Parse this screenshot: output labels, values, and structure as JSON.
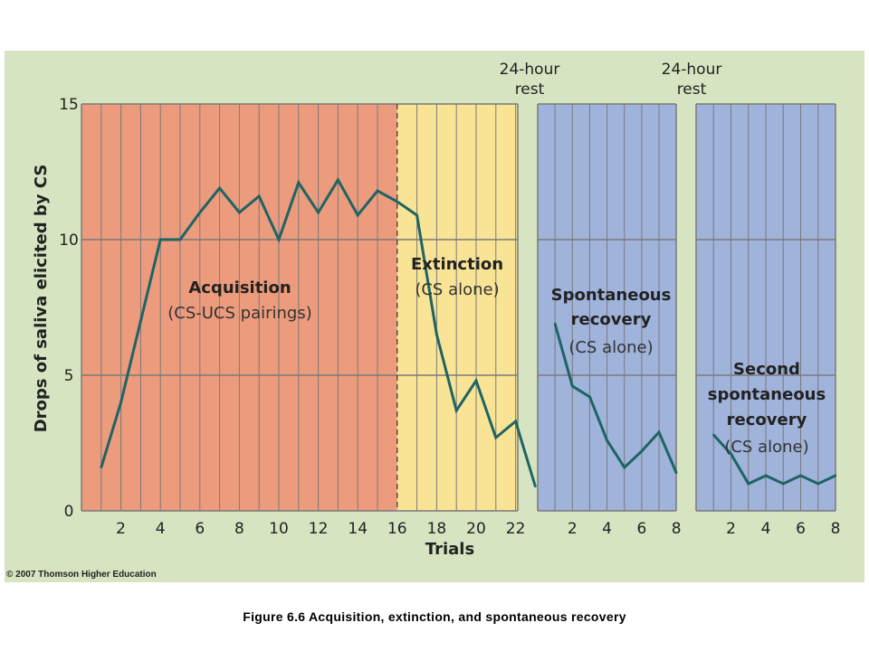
{
  "caption": "Figure 6.6 Acquisition, extinction, and spontaneous recovery",
  "copyright": "© 2007 Thomson Higher Education",
  "chart_data": {
    "type": "line",
    "ylabel": "Drops of saliva elicited by CS",
    "xlabel": "Trials",
    "ylim": [
      0,
      15
    ],
    "yticks": [
      "0",
      "5",
      "10",
      "15"
    ],
    "grid": true,
    "colors": {
      "background": "#d6e4c1",
      "acquisition": "#ec9b7c",
      "extinction": "#f9e496",
      "recovery": "#9fb3db",
      "line": "#1f6464",
      "gridline": "#7a7a7a"
    },
    "panels": [
      {
        "phase": "acquisition",
        "title": "Acquisition",
        "subtitle": "(CS-UCS pairings)",
        "x": [
          1,
          2,
          3,
          4,
          5,
          6,
          7,
          8,
          9,
          10,
          11,
          12,
          13,
          14,
          15,
          16
        ],
        "y": [
          1.6,
          4.0,
          7.0,
          10.0,
          10.0,
          11.0,
          11.9,
          11.0,
          11.6,
          10.0,
          12.1,
          11.0,
          12.2,
          10.9,
          11.8,
          11.4
        ],
        "xticks": [
          "2",
          "4",
          "6",
          "8",
          "10",
          "12",
          "14",
          "16"
        ]
      },
      {
        "phase": "extinction",
        "title": "Extinction",
        "subtitle": "(CS alone)",
        "x": [
          16,
          17,
          18,
          19,
          20,
          21,
          22,
          23
        ],
        "y": [
          11.4,
          10.9,
          6.5,
          3.7,
          4.8,
          2.7,
          3.3,
          0.9
        ],
        "xticks": [
          "18",
          "20",
          "22"
        ]
      },
      {
        "phase": "spontaneous-recovery",
        "title": "Spontaneous\nrecovery",
        "subtitle": "(CS alone)",
        "rest_label": "24-hour\nrest",
        "x": [
          1,
          2,
          3,
          4,
          5,
          6,
          7,
          8
        ],
        "y": [
          6.9,
          4.6,
          4.2,
          2.6,
          1.6,
          2.2,
          2.9,
          1.4
        ],
        "xticks": [
          "2",
          "4",
          "6",
          "8"
        ]
      },
      {
        "phase": "second-recovery",
        "title": "Second\nspontaneous\nrecovery",
        "subtitle": "(CS alone)",
        "rest_label": "24-hour\nrest",
        "x": [
          1,
          2,
          3,
          4,
          5,
          6,
          7,
          8
        ],
        "y": [
          2.8,
          2.1,
          1.0,
          1.3,
          1.0,
          1.3,
          1.0,
          1.3
        ],
        "xticks": [
          "2",
          "4",
          "6",
          "8"
        ]
      }
    ]
  }
}
